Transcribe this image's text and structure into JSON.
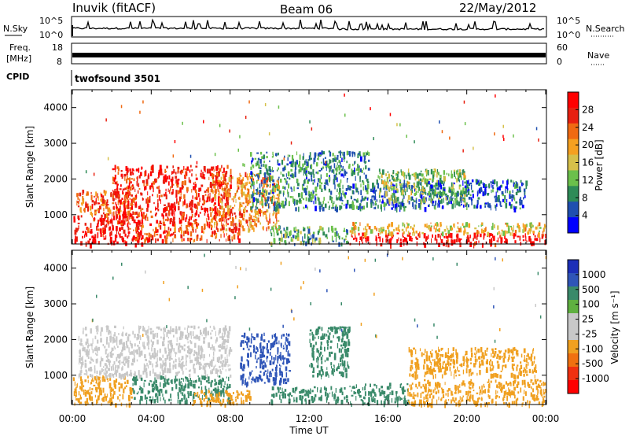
{
  "header": {
    "station": "Inuvik (fitACF)",
    "beam": "Beam 06",
    "date": "22/May/2012"
  },
  "panels": {
    "nsky": {
      "label": "N.Sky",
      "right_label": "N.Search",
      "left_ticks": [
        "10^5",
        "10^0"
      ],
      "right_ticks": [
        "10^5",
        "10^0"
      ]
    },
    "freq": {
      "label_line1": "Freq.",
      "label_line2": "[MHz]",
      "right_label": "Nave",
      "left_ticks": [
        "18",
        "8"
      ],
      "right_ticks": [
        "60",
        "0"
      ]
    },
    "cpid": {
      "label": "CPID",
      "value": "twofsound 3501"
    }
  },
  "colors": {
    "power_scale": [
      "#0000ff",
      "#1f4fb0",
      "#2e8b57",
      "#6bc04b",
      "#d6c04a",
      "#f5a020",
      "#f06a12",
      "#e82010",
      "#ff0000"
    ],
    "velocity_scale": [
      "#1c2fb8",
      "#2f55b8",
      "#3a8a6a",
      "#5fb040",
      "#c8c8c8",
      "#c8c8c8",
      "#f0a020",
      "#f07010",
      "#f03010",
      "#ff0000"
    ]
  },
  "chart_data": [
    {
      "type": "heatmap",
      "title": "Power",
      "xlabel": "",
      "ylabel": "Slant Range [km]",
      "x_ticks": [
        "00:00",
        "04:00",
        "08:00",
        "12:00",
        "16:00",
        "20:00",
        "00:00"
      ],
      "xlim_hours": [
        0,
        24
      ],
      "ylim": [
        180,
        4500
      ],
      "y_ticks": [
        1000,
        2000,
        3000,
        4000
      ],
      "colorbar": {
        "label": "Power [dB]",
        "ticks": [
          "4",
          "8",
          "12",
          "16",
          "20",
          "24",
          "28"
        ],
        "range": [
          0,
          30
        ]
      },
      "regions": [
        {
          "t0": 0.0,
          "t1": 3.5,
          "r0": 200,
          "r1": 1000,
          "value": 28
        },
        {
          "t0": 0.2,
          "t1": 3.0,
          "r0": 1000,
          "r1": 1700,
          "value": 22
        },
        {
          "t0": 2.0,
          "t1": 8.0,
          "r0": 800,
          "r1": 2400,
          "value": 26
        },
        {
          "t0": 3.0,
          "t1": 8.5,
          "r0": 300,
          "r1": 800,
          "value": 24
        },
        {
          "t0": 7.0,
          "t1": 10.5,
          "r0": 600,
          "r1": 2200,
          "value": 20
        },
        {
          "t0": 9.0,
          "t1": 15.0,
          "r0": 1200,
          "r1": 2800,
          "value": 8
        },
        {
          "t0": 10.0,
          "t1": 14.0,
          "r0": 200,
          "r1": 700,
          "value": 10
        },
        {
          "t0": 14.0,
          "t1": 24.0,
          "r0": 200,
          "r1": 500,
          "value": 28
        },
        {
          "t0": 14.0,
          "t1": 24.0,
          "r0": 500,
          "r1": 800,
          "value": 16
        },
        {
          "t0": 15.0,
          "t1": 23.0,
          "r0": 1200,
          "r1": 2000,
          "value": 6
        },
        {
          "t0": 15.5,
          "t1": 20.0,
          "r0": 1400,
          "r1": 2300,
          "value": 12
        }
      ]
    },
    {
      "type": "heatmap",
      "title": "Velocity",
      "xlabel": "Time UT",
      "ylabel": "Slant Range [km]",
      "x_ticks": [
        "00:00",
        "04:00",
        "08:00",
        "12:00",
        "16:00",
        "20:00",
        "00:00"
      ],
      "xlim_hours": [
        0,
        24
      ],
      "ylim": [
        180,
        4500
      ],
      "y_ticks": [
        1000,
        2000,
        3000,
        4000
      ],
      "colorbar": {
        "label": "Velocity [m s⁻¹]",
        "ticks": [
          "1000",
          "500",
          "100",
          "25",
          "-25",
          "-100",
          "-500",
          "-1000"
        ]
      },
      "regions": [
        {
          "t0": 0.0,
          "t1": 3.0,
          "r0": 200,
          "r1": 1000,
          "value": -100
        },
        {
          "t0": 0.3,
          "t1": 8.0,
          "r0": 1000,
          "r1": 2400,
          "value": 0
        },
        {
          "t0": 3.0,
          "t1": 8.0,
          "r0": 300,
          "r1": 1000,
          "value": 100
        },
        {
          "t0": 6.0,
          "t1": 9.0,
          "r0": 200,
          "r1": 600,
          "value": -100
        },
        {
          "t0": 8.5,
          "t1": 11.0,
          "r0": 800,
          "r1": 2200,
          "value": 500
        },
        {
          "t0": 10.0,
          "t1": 14.0,
          "r0": 300,
          "r1": 700,
          "value": 100
        },
        {
          "t0": 12.0,
          "t1": 14.0,
          "r0": 1000,
          "r1": 2400,
          "value": 100
        },
        {
          "t0": 14.0,
          "t1": 17.0,
          "r0": 200,
          "r1": 800,
          "value": 100
        },
        {
          "t0": 17.0,
          "t1": 24.0,
          "r0": 200,
          "r1": 900,
          "value": -100
        },
        {
          "t0": 17.0,
          "t1": 23.5,
          "r0": 1000,
          "r1": 1800,
          "value": -100
        }
      ]
    }
  ]
}
